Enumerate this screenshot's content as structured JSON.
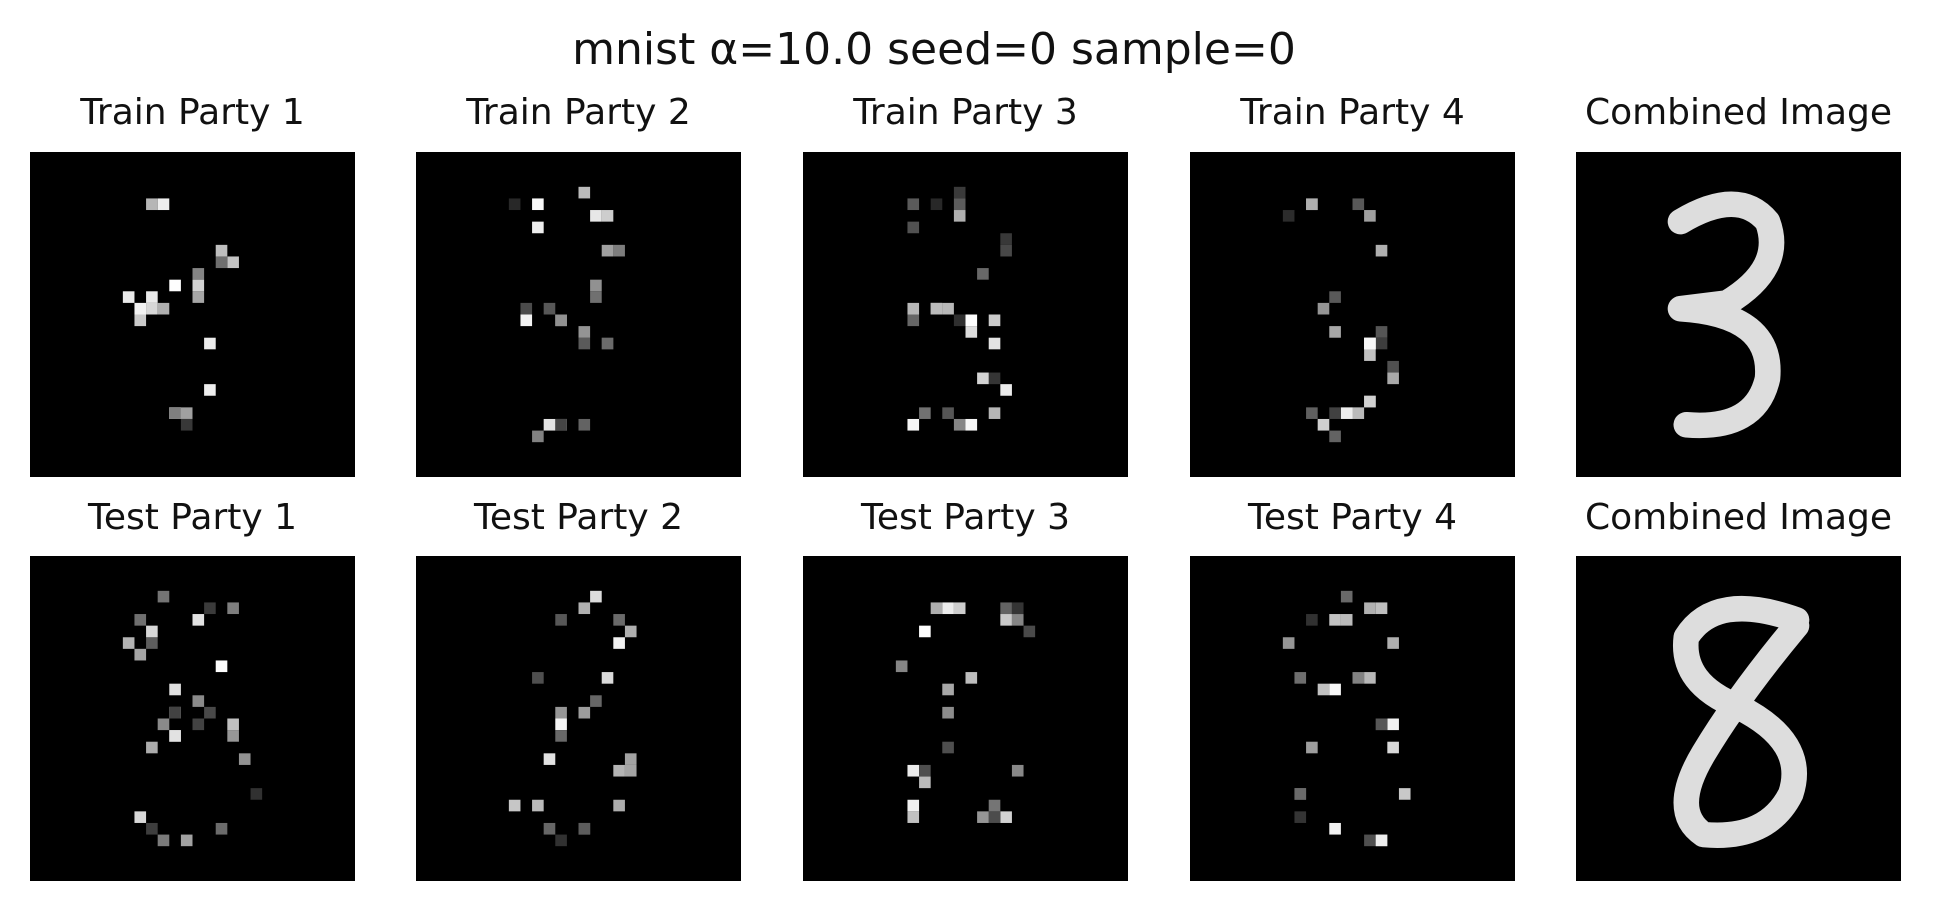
{
  "title": "mnist α=10.0 seed=0 sample=0",
  "rows": [
    {
      "panels": [
        "Train Party 1",
        "Train Party 2",
        "Train Party 3",
        "Train Party 4",
        "Combined Image"
      ]
    },
    {
      "panels": [
        "Test Party 1",
        "Test Party 2",
        "Test Party 3",
        "Test Party 4",
        "Combined Image"
      ]
    }
  ]
}
